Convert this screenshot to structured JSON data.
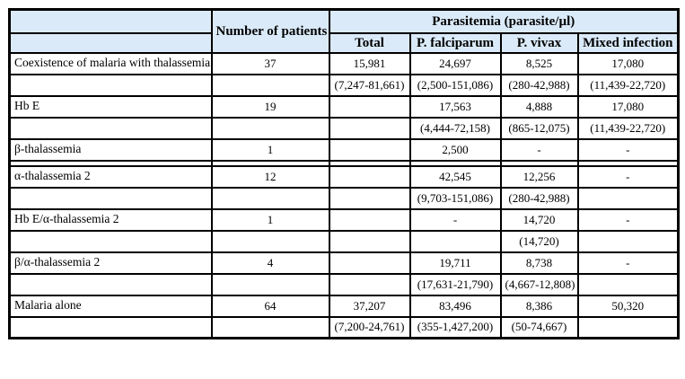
{
  "table": {
    "header": {
      "corner": "",
      "patients": "Number of patients",
      "parasitemia": "Parasitemia (parasite/µl)",
      "subcols": [
        "Total",
        "P. falciparum",
        "P. vivax",
        "Mixed infection"
      ]
    },
    "columns_keys": [
      "label",
      "patients",
      "total",
      "falciparum",
      "vivax",
      "mixed"
    ],
    "rows": [
      {
        "label": "Coexistence of malaria with thalassemia",
        "patients": "37",
        "total": "15,981",
        "falciparum": "24,697",
        "vivax": "8,525",
        "mixed": "17,080",
        "thin": false
      },
      {
        "label": "",
        "patients": "",
        "total": "(7,247-81,661)",
        "falciparum": "(2,500-151,086)",
        "vivax": "(280-42,988)",
        "mixed": "(11,439-22,720)",
        "thin": false
      },
      {
        "label": "Hb E",
        "patients": "19",
        "total": "",
        "falciparum": "17,563",
        "vivax": "4,888",
        "mixed": "17,080",
        "thin": false
      },
      {
        "label": "",
        "patients": "",
        "total": "",
        "falciparum": "(4,444-72,158)",
        "vivax": "(865-12,075)",
        "mixed": "(11,439-22,720)",
        "thin": false
      },
      {
        "label": "β-thalassemia",
        "patients": "1",
        "total": "",
        "falciparum": "2,500",
        "vivax": "-",
        "mixed": "-",
        "thin": false
      },
      {
        "label": "",
        "patients": "",
        "total": "",
        "falciparum": "",
        "vivax": "",
        "mixed": "",
        "thin": true
      },
      {
        "label": "α-thalassemia 2",
        "patients": "12",
        "total": "",
        "falciparum": "42,545",
        "vivax": "12,256",
        "mixed": "-",
        "thin": false
      },
      {
        "label": "",
        "patients": "",
        "total": "",
        "falciparum": "(9,703-151,086)",
        "vivax": "(280-42,988)",
        "mixed": "",
        "thin": false
      },
      {
        "label": "Hb E/α-thalassemia 2",
        "patients": "1",
        "total": "",
        "falciparum": "-",
        "vivax": "14,720",
        "mixed": "-",
        "thin": false
      },
      {
        "label": "",
        "patients": "",
        "total": "",
        "falciparum": "",
        "vivax": "(14,720)",
        "mixed": "",
        "thin": false
      },
      {
        "label": "β/α-thalassemia 2",
        "patients": "4",
        "total": "",
        "falciparum": "19,711",
        "vivax": "8,738",
        "mixed": "-",
        "thin": false
      },
      {
        "label": "",
        "patients": "",
        "total": "",
        "falciparum": "(17,631-21,790)",
        "vivax": "(4,667-12,808)",
        "mixed": "",
        "thin": false
      },
      {
        "label": "Malaria alone",
        "patients": "64",
        "total": "37,207",
        "falciparum": "83,496",
        "vivax": "8,386",
        "mixed": "50,320",
        "thin": false
      },
      {
        "label": "",
        "patients": "",
        "total": "(7,200-24,761)",
        "falciparum": "(355-1,427,200)",
        "vivax": "(50-74,667)",
        "mixed": "",
        "thin": false
      }
    ],
    "colors": {
      "header_bg": "#daeaf8",
      "border": "#000000"
    }
  }
}
